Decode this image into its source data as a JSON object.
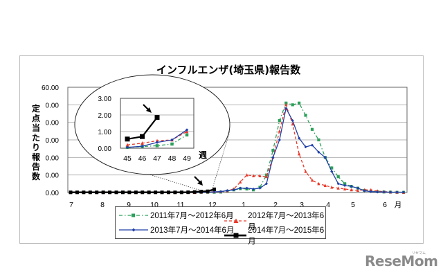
{
  "chart_data": {
    "type": "line",
    "title": "インフルエンザ(埼玉県)報告数",
    "ylabel": "定点当たり報告数",
    "xlabel": "月",
    "ylim": [
      0,
      60
    ],
    "y_tick_labels": [
      "0.00",
      "0.00",
      "0.00",
      "0.00",
      "0.00",
      "0.00",
      "60.00"
    ],
    "x_month_labels": [
      "7",
      "8",
      "9",
      "10",
      "11",
      "12",
      "1",
      "2",
      "3",
      "4",
      "5",
      "6"
    ],
    "x_unit_label": "月",
    "grid": true,
    "legend_position": "bottom",
    "x_weeks": "52 weekly points from July (week 27) through June (week 26)",
    "series": [
      {
        "name": "2011年7月～2012年6月",
        "color": "#2ca05a",
        "style": "dash-dot",
        "marker": "square",
        "values": [
          0,
          0,
          0,
          0,
          0,
          0,
          0,
          0,
          0,
          0,
          0,
          0,
          0,
          0,
          0,
          0,
          0,
          0,
          0,
          0,
          0.05,
          0.1,
          0.15,
          0.25,
          0.8,
          1.5,
          2.2,
          2.0,
          1.5,
          3.0,
          10,
          24,
          41,
          51,
          50,
          51,
          44,
          36,
          30,
          20,
          14,
          9,
          5,
          3.5,
          2.5,
          1.2,
          0.8,
          0.5,
          0.3,
          0.2,
          0.1,
          0.1
        ]
      },
      {
        "name": "2012年7月～2013年6月",
        "color": "#e8392a",
        "style": "dashed",
        "marker": "triangle",
        "values": [
          0,
          0,
          0,
          0,
          0,
          0,
          0,
          0,
          0,
          0,
          0,
          0,
          0,
          0,
          0,
          0,
          0,
          0,
          0,
          0,
          0.2,
          0.3,
          0.45,
          0.5,
          1.0,
          2.0,
          6.0,
          10,
          9.5,
          9.5,
          9.0,
          20,
          35,
          50,
          39,
          22,
          12,
          7,
          5,
          4,
          3,
          2.5,
          2,
          1.5,
          1.2,
          1.5,
          1.5,
          0.8,
          0.5,
          0.3,
          0.2,
          0.1
        ]
      },
      {
        "name": "2013年7月～2014年6月",
        "color": "#1f3fa8",
        "style": "solid",
        "marker": "diamond",
        "values": [
          0,
          0,
          0,
          0,
          0,
          0,
          0,
          0,
          0,
          0,
          0,
          0,
          0,
          0,
          0,
          0,
          0,
          0,
          0,
          0,
          0.05,
          0.12,
          0.35,
          0.5,
          1.1,
          1.5,
          2.5,
          2.5,
          2.0,
          2.5,
          5,
          20,
          30,
          48,
          41,
          31,
          26,
          27,
          23,
          20,
          12,
          5,
          4,
          3.5,
          2.5,
          1.0,
          0.5,
          0.3,
          0.3,
          0.2,
          0.2,
          0.2
        ]
      },
      {
        "name": "2014年7月～2015年6月",
        "color": "#000000",
        "style": "solid-thick",
        "marker": "square",
        "values": [
          0.1,
          0.1,
          0.1,
          0.1,
          0.1,
          0.1,
          0.1,
          0.1,
          0.1,
          0.1,
          0.1,
          0.1,
          0.1,
          0.1,
          0.1,
          0.1,
          0.1,
          0.1,
          0.15,
          0.3,
          0.55,
          0.7,
          1.85
        ]
      }
    ],
    "inset": {
      "type": "line",
      "x_categories": [
        "45",
        "46",
        "47",
        "48",
        "49"
      ],
      "x_unit_label": "週",
      "ylim": [
        0,
        3
      ],
      "y_tick_labels": [
        "0.00",
        "1.00",
        "2.00",
        "3.00"
      ],
      "series": [
        {
          "name": "2011年7月～2012年6月",
          "values": [
            0.05,
            0.1,
            0.15,
            0.25,
            0.8
          ]
        },
        {
          "name": "2012年7月～2013年6月",
          "values": [
            0.2,
            0.3,
            0.45,
            0.5,
            1.0
          ]
        },
        {
          "name": "2013年7月～2014年6月",
          "values": [
            0.05,
            0.12,
            0.35,
            0.5,
            1.1
          ]
        },
        {
          "name": "2014年7月～2015年6月",
          "values": [
            0.55,
            0.7,
            1.85
          ]
        }
      ],
      "annotation": "arrow pointing to week 47 latest value"
    }
  },
  "legend": {
    "items": [
      {
        "label": "2011年7月～2012年6月"
      },
      {
        "label": "2012年7月～2013年6月"
      },
      {
        "label": "2013年7月～2014年6月"
      },
      {
        "label": "2014年7月～2015年6月"
      }
    ]
  },
  "watermark": {
    "logo_text": "ReseMom",
    "logo_subtext": "リセマム"
  }
}
